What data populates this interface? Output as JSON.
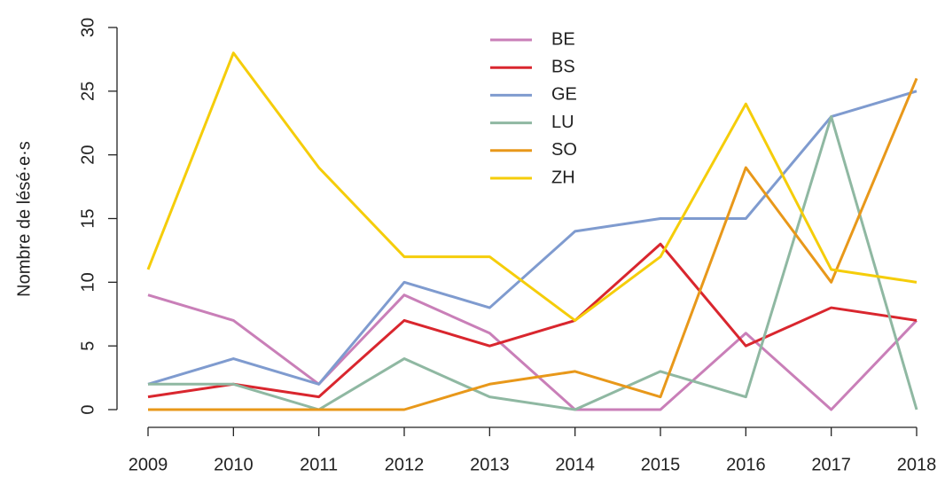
{
  "chart_data": {
    "type": "line",
    "ylabel": "Nombre de lésé·e·s",
    "x": [
      2009,
      2010,
      2011,
      2012,
      2013,
      2014,
      2015,
      2016,
      2017,
      2018
    ],
    "xlim": [
      2009,
      2018
    ],
    "xticks": [
      2009,
      2010,
      2011,
      2012,
      2013,
      2014,
      2015,
      2016,
      2017,
      2018
    ],
    "ylim": [
      0,
      30
    ],
    "yticks": [
      0,
      5,
      10,
      15,
      20,
      25,
      30
    ],
    "legend": "top",
    "series": [
      {
        "name": "BE",
        "color": "#c97fb8",
        "values": [
          9,
          7,
          2,
          9,
          6,
          0,
          0,
          6,
          0,
          7
        ]
      },
      {
        "name": "BS",
        "color": "#d9262e",
        "values": [
          1,
          2,
          1,
          7,
          5,
          7,
          13,
          5,
          8,
          7
        ]
      },
      {
        "name": "GE",
        "color": "#7f9bcf",
        "values": [
          2,
          4,
          2,
          10,
          8,
          14,
          15,
          15,
          23,
          25
        ]
      },
      {
        "name": "LU",
        "color": "#8fb8a2",
        "values": [
          2,
          2,
          0,
          4,
          1,
          0,
          3,
          1,
          23,
          0
        ]
      },
      {
        "name": "SO",
        "color": "#e8981a",
        "values": [
          0,
          0,
          0,
          0,
          2,
          3,
          1,
          19,
          10,
          26
        ]
      },
      {
        "name": "ZH",
        "color": "#f5cd0a",
        "values": [
          11,
          28,
          19,
          12,
          12,
          7,
          12,
          24,
          11,
          10
        ]
      }
    ]
  }
}
